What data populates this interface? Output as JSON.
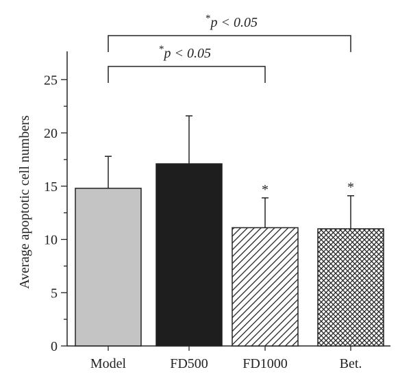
{
  "chart_data": {
    "type": "bar",
    "categories": [
      "Model",
      "FD500",
      "FD1000",
      "Bet."
    ],
    "values": [
      14.8,
      17.1,
      11.1,
      11.0
    ],
    "errors": [
      3.0,
      4.5,
      2.8,
      3.1
    ],
    "bar_fills": [
      "solid-gray",
      "solid-black",
      "diagonal-hatch",
      "cross-hatch"
    ],
    "bar_colors": [
      "#c4c4c4",
      "#1e1e1e",
      "#ffffff",
      "#ffffff"
    ],
    "marker_labels": [
      "",
      "",
      "*",
      "*"
    ],
    "ylabel": "Average apoptotic cell numbers",
    "xlabel": "",
    "ylim": [
      0,
      27
    ],
    "yticks": [
      0,
      5,
      10,
      15,
      20,
      25
    ],
    "grid": false,
    "significance": [
      {
        "from": "Model",
        "to": "FD1000",
        "star": "*",
        "text": "p < 0.05"
      },
      {
        "from": "Model",
        "to": "Bet.",
        "star": "*",
        "text": "p < 0.05"
      }
    ]
  }
}
